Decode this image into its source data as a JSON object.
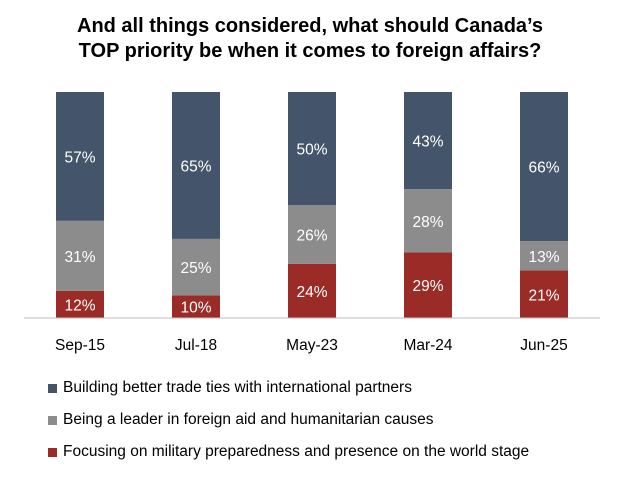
{
  "chart_data": {
    "type": "bar",
    "stacked": true,
    "title_lines": [
      "And all things considered, what should Canada’s",
      "TOP priority be when it comes to foreign affairs?"
    ],
    "categories": [
      "Sep-15",
      "Jul-18",
      "May-23",
      "Mar-24",
      "Jun-25"
    ],
    "series": [
      {
        "name": "Focusing on military preparedness and presence on the world stage",
        "values": [
          12,
          10,
          24,
          29,
          21
        ],
        "color": "#9b2b26"
      },
      {
        "name": "Being a leader in foreign aid and humanitarian causes",
        "values": [
          31,
          25,
          26,
          28,
          13
        ],
        "color": "#8c8c8c"
      },
      {
        "name": "Building better trade ties with international partners",
        "values": [
          57,
          65,
          50,
          43,
          66
        ],
        "color": "#44546a"
      }
    ],
    "legend_order": [
      2,
      1,
      0
    ],
    "value_suffix": "%",
    "ylim": [
      0,
      100
    ],
    "xlabel": "",
    "ylabel": "",
    "grid": false
  }
}
